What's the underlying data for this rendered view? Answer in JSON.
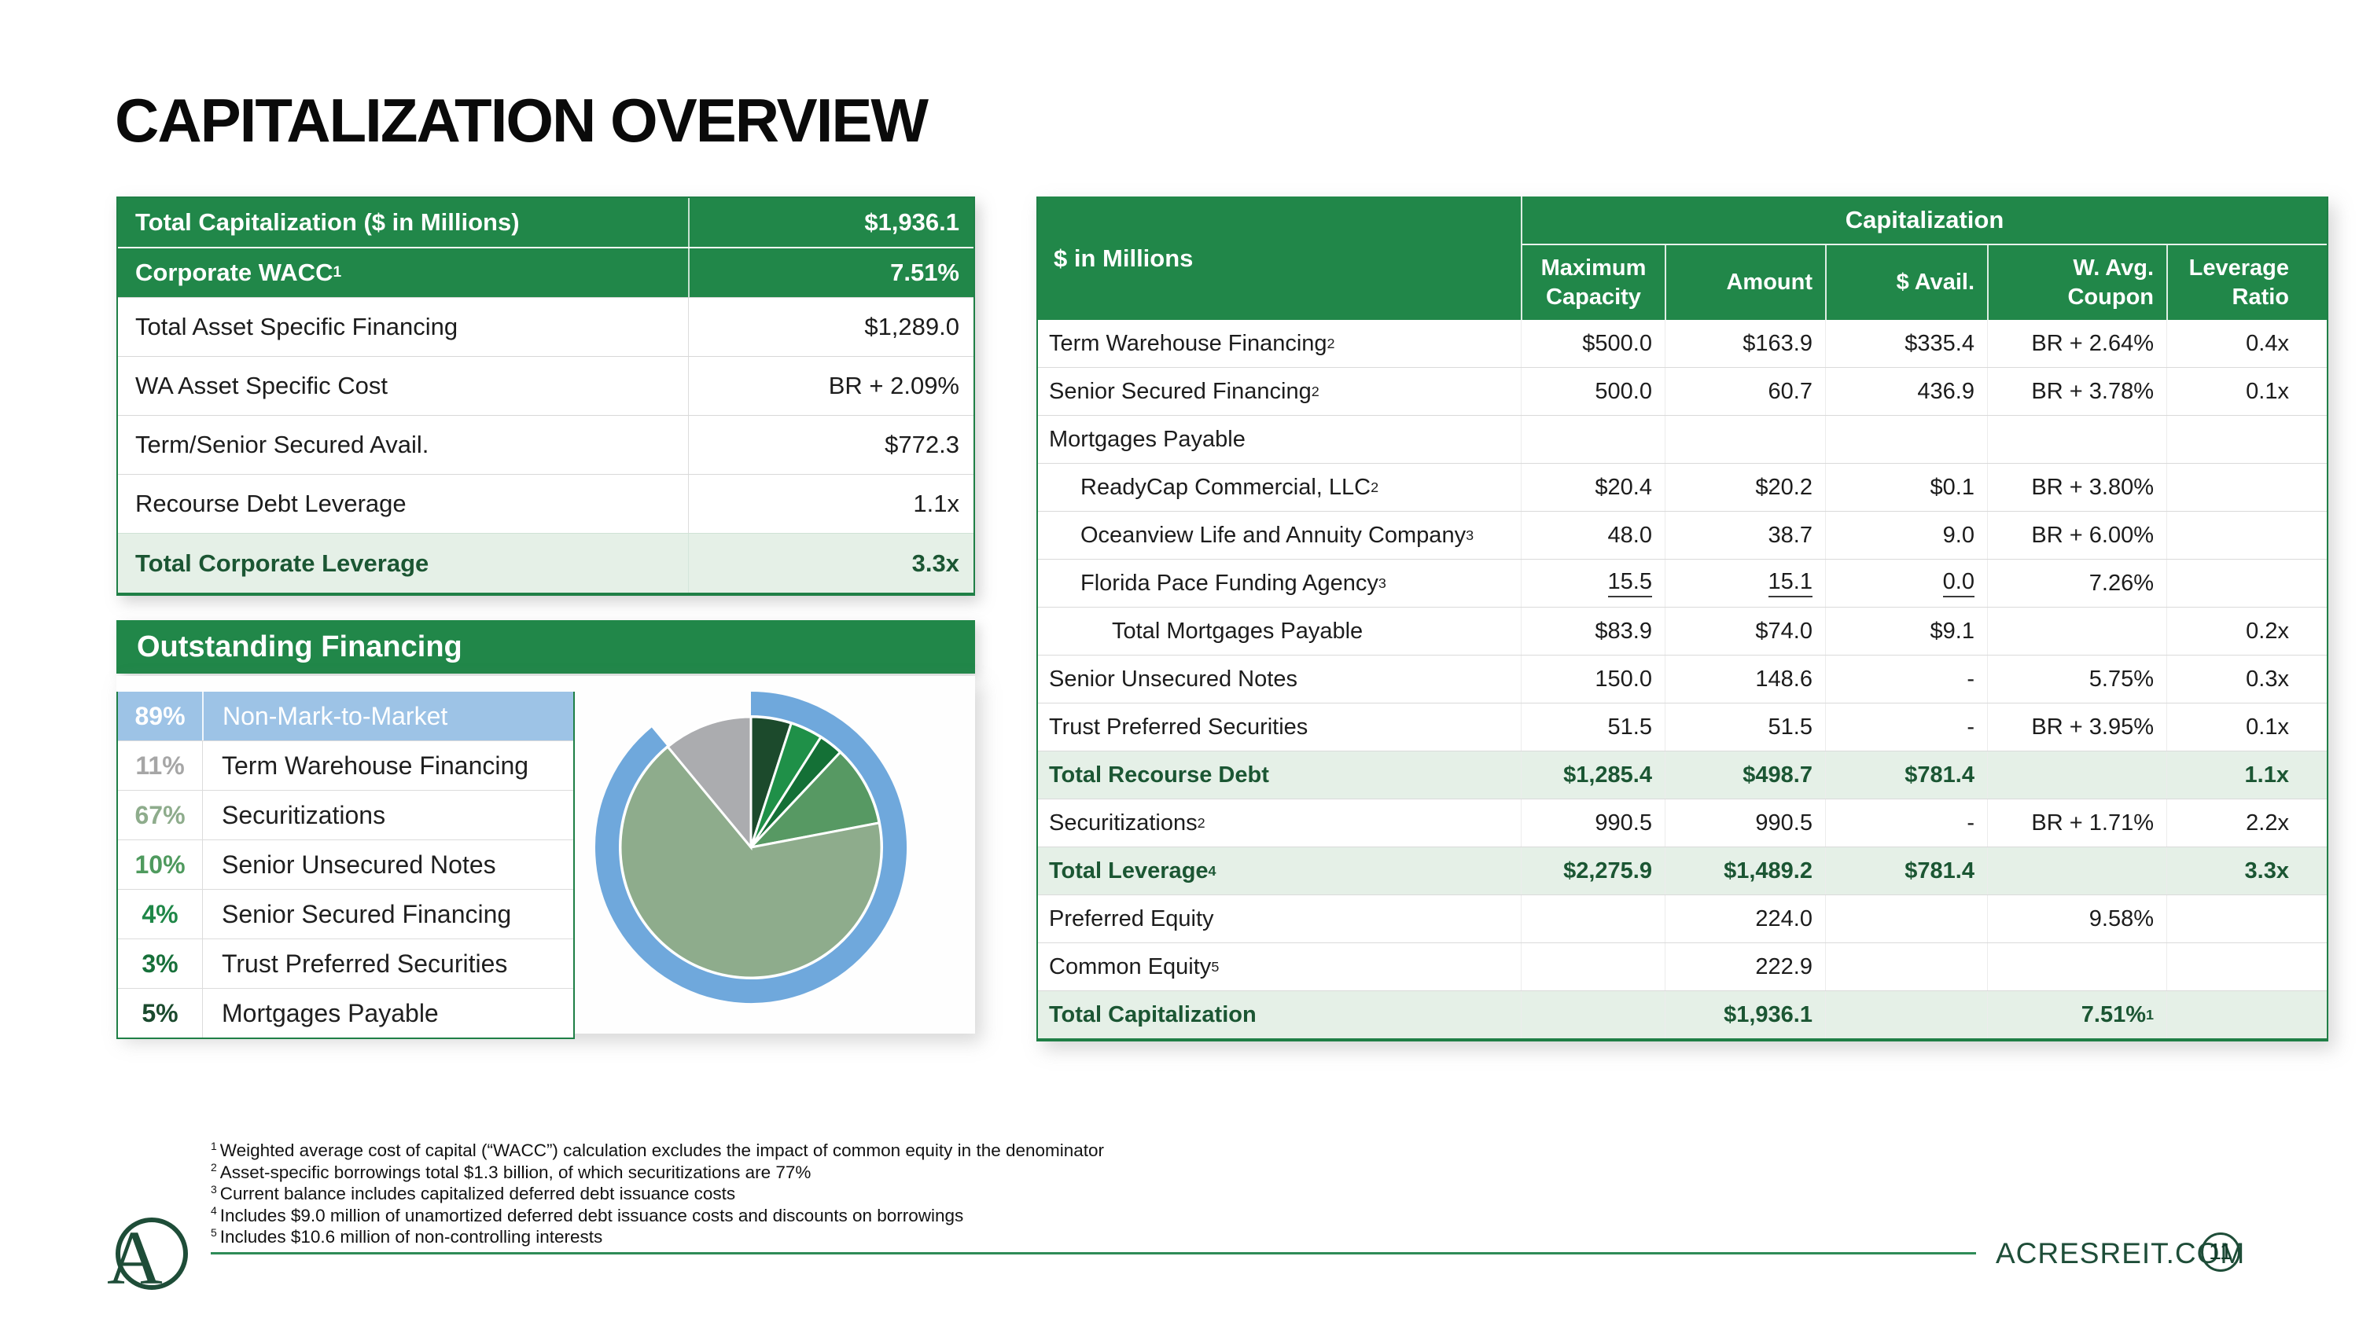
{
  "page": {
    "title": "CAPITALIZATION OVERVIEW",
    "footer_url": "ACRESREIT.COM",
    "page_number": "11"
  },
  "summary_table": {
    "rows": [
      {
        "label": "Total Capitalization ($ in Millions)",
        "value": "$1,936.1",
        "style": "header"
      },
      {
        "label": "Corporate WACC",
        "sup": "1",
        "value": "7.51%",
        "style": "header"
      },
      {
        "label": "Total Asset Specific Financing",
        "value": "$1,289.0",
        "style": "plain"
      },
      {
        "label": "WA Asset Specific Cost",
        "value": "BR + 2.09%",
        "style": "plain"
      },
      {
        "label": "Term/Senior Secured Avail.",
        "value": "$772.3",
        "style": "plain"
      },
      {
        "label": "Recourse Debt Leverage",
        "value": "1.1x",
        "style": "plain"
      },
      {
        "label": "Total Corporate Leverage",
        "value": "3.3x",
        "style": "total"
      }
    ]
  },
  "outstanding_financing": {
    "header": "Outstanding Financing",
    "legend": [
      {
        "pct": "89%",
        "label": "Non-Mark-to-Market",
        "style": "highlight",
        "pct_color": "#FFFFFF"
      },
      {
        "pct": "11%",
        "label": "Term Warehouse Financing",
        "pct_color": "#A6A6A6"
      },
      {
        "pct": "67%",
        "label": "Securitizations",
        "pct_color": "#8EAC8C"
      },
      {
        "pct": "10%",
        "label": "Senior Unsecured Notes",
        "pct_color": "#4F9A5E"
      },
      {
        "pct": "4%",
        "label": "Senior Secured Financing",
        "pct_color": "#1F8748"
      },
      {
        "pct": "3%",
        "label": "Trust Preferred Securities",
        "pct_color": "#17703A"
      },
      {
        "pct": "5%",
        "label": "Mortgages Payable",
        "pct_color": "#1B4A2E"
      }
    ]
  },
  "chart_data": {
    "type": "pie",
    "title": "Outstanding Financing",
    "units": "percent",
    "start_angle_deg": 0,
    "slices": [
      {
        "label": "Mortgages Payable",
        "value": 5,
        "color": "#1C4A2C"
      },
      {
        "label": "Senior Secured Financing",
        "value": 4,
        "color": "#1F9048"
      },
      {
        "label": "Trust Preferred Securities",
        "value": 3,
        "color": "#147036"
      },
      {
        "label": "Senior Unsecured Notes",
        "value": 10,
        "color": "#579963"
      },
      {
        "label": "Securitizations",
        "value": 67,
        "color": "#8EAC8C"
      },
      {
        "label": "Term Warehouse Financing",
        "value": 11,
        "color": "#ABACAF"
      }
    ],
    "ring": {
      "label": "Non-Mark-to-Market",
      "value": 89,
      "color": "#6FA8DC"
    }
  },
  "cap_table": {
    "corner_header": "$ in Millions",
    "group_header": "Capitalization",
    "columns": [
      "Maximum Capacity",
      "Amount",
      "$ Avail.",
      "W. Avg. Coupon",
      "Leverage Ratio"
    ],
    "rows": [
      {
        "label": "Term Warehouse Financing",
        "sup": "2",
        "cells": [
          "$500.0",
          "$163.9",
          "$335.4",
          "BR + 2.64%",
          "0.4x"
        ]
      },
      {
        "label": "Senior Secured Financing",
        "sup": "2",
        "cells": [
          "500.0",
          "60.7",
          "436.9",
          "BR + 3.78%",
          "0.1x"
        ]
      },
      {
        "label": "Mortgages Payable",
        "cells": [
          "",
          "",
          "",
          "",
          ""
        ]
      },
      {
        "label": "ReadyCap Commercial, LLC",
        "sup": "2",
        "indent": 1,
        "cells": [
          "$20.4",
          "$20.2",
          "$0.1",
          "BR + 3.80%",
          ""
        ]
      },
      {
        "label": "Oceanview Life and Annuity Company",
        "sup": "3",
        "indent": 1,
        "cells": [
          "48.0",
          "38.7",
          "9.0",
          "BR + 6.00%",
          ""
        ]
      },
      {
        "label": "Florida Pace Funding Agency",
        "sup": "3",
        "indent": 1,
        "cells": [
          {
            "v": "15.5",
            "u": true
          },
          {
            "v": "15.1",
            "u": true
          },
          {
            "v": "0.0",
            "u": true
          },
          "7.26%",
          ""
        ]
      },
      {
        "label": "Total Mortgages Payable",
        "indent": 2,
        "cells": [
          "$83.9",
          "$74.0",
          "$9.1",
          "",
          "0.2x"
        ]
      },
      {
        "label": "Senior Unsecured Notes",
        "cells": [
          "150.0",
          "148.6",
          "-",
          "5.75%",
          "0.3x"
        ]
      },
      {
        "label": "Trust Preferred Securities",
        "cells": [
          "51.5",
          "51.5",
          "-",
          "BR + 3.95%",
          "0.1x"
        ]
      },
      {
        "label": "Total Recourse Debt",
        "style": "total",
        "cells": [
          "$1,285.4",
          "$498.7",
          "$781.4",
          "",
          "1.1x"
        ]
      },
      {
        "label": "Securitizations",
        "sup": "2",
        "cells": [
          "990.5",
          "990.5",
          "-",
          "BR + 1.71%",
          "2.2x"
        ]
      },
      {
        "label": "Total Leverage",
        "sup": "4",
        "style": "total",
        "cells": [
          "$2,275.9",
          "$1,489.2",
          "$781.4",
          "",
          "3.3x"
        ]
      },
      {
        "label": "Preferred Equity",
        "cells": [
          "",
          "224.0",
          "",
          "9.58%",
          ""
        ]
      },
      {
        "label": "Common Equity",
        "sup": "5",
        "cells": [
          "",
          "222.9",
          "",
          "",
          ""
        ]
      },
      {
        "label": "Total Capitalization",
        "style": "total",
        "cells": [
          "",
          "$1,936.1",
          "",
          {
            "v": "7.51%",
            "sup": "1"
          },
          ""
        ]
      }
    ]
  },
  "footnotes": [
    {
      "sup": "1",
      "text": "Weighted average cost of capital (“WACC”) calculation excludes the impact of common equity in the denominator"
    },
    {
      "sup": "2",
      "text": "Asset-specific borrowings total $1.3 billion, of which securitizations are 77%"
    },
    {
      "sup": "3",
      "text": "Current balance includes capitalized deferred debt issuance costs"
    },
    {
      "sup": "4",
      "text": "Includes $9.0 million of unamortized deferred debt issuance costs and discounts on borrowings"
    },
    {
      "sup": "5",
      "text": "Includes $10.6 million of non-controlling interests"
    }
  ]
}
